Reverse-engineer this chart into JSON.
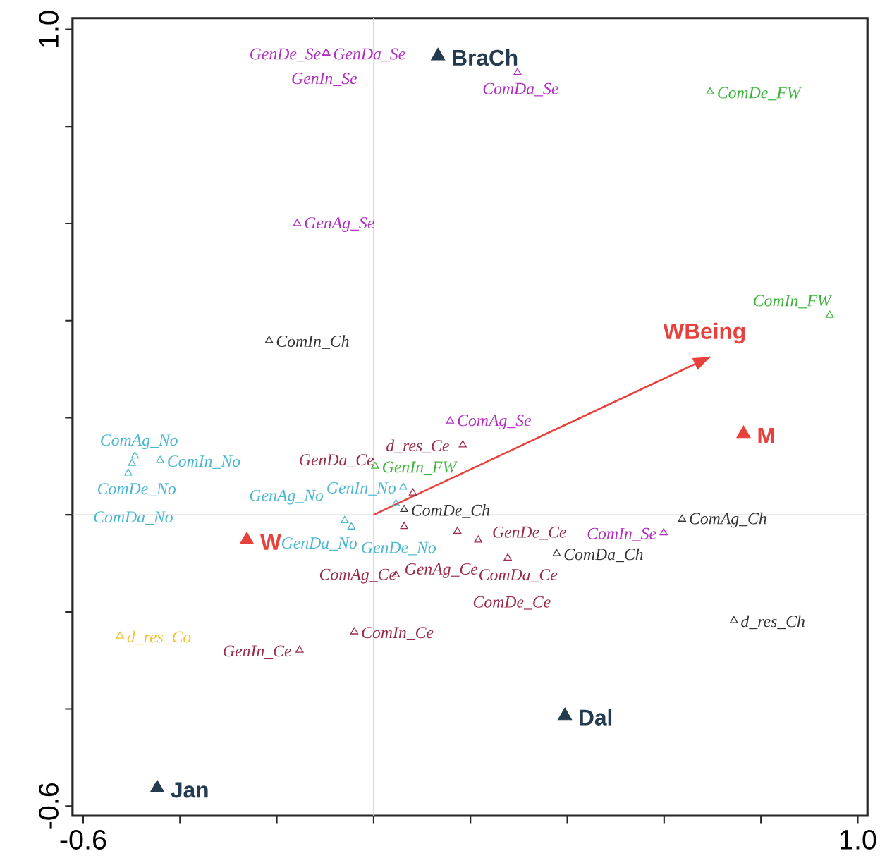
{
  "chart_data": {
    "type": "scatter",
    "marker": "triangle",
    "grid": false,
    "xlim": [
      -0.622,
      1.02
    ],
    "ylim": [
      -0.62,
      1.023
    ],
    "xticks": [
      {
        "value": -0.6,
        "label": "-0.6"
      },
      {
        "value": -0.4,
        "label": null
      },
      {
        "value": -0.2,
        "label": null
      },
      {
        "value": 0,
        "label": null
      },
      {
        "value": 0.2,
        "label": null
      },
      {
        "value": 0.4,
        "label": null
      },
      {
        "value": 0.6,
        "label": null
      },
      {
        "value": 0.8,
        "label": null
      },
      {
        "value": 1.0,
        "label": "1.0"
      }
    ],
    "yticks": [
      {
        "value": -0.6,
        "label": "-0.6"
      },
      {
        "value": -0.4,
        "label": null
      },
      {
        "value": -0.2,
        "label": null
      },
      {
        "value": 0,
        "label": null
      },
      {
        "value": 0.2,
        "label": null
      },
      {
        "value": 0.4,
        "label": null
      },
      {
        "value": 0.6,
        "label": null
      },
      {
        "value": 0.8,
        "label": null
      },
      {
        "value": 1.0,
        "label": "1.0"
      }
    ],
    "ref_lines": [
      {
        "axis": "x",
        "value": 0,
        "color": "#d6d6d6"
      },
      {
        "axis": "y",
        "value": 0,
        "color": "#e3e3e3"
      }
    ],
    "series": [
      {
        "color": "#b22fc4",
        "x": [
          -0.098,
          -0.098,
          -0.098,
          -0.158,
          0.297,
          0.158,
          0.599
        ],
        "values": [
          0.951,
          0.951,
          0.951,
          0.6,
          0.911,
          0.193,
          -0.037
        ]
      },
      {
        "color": "#3cb43c",
        "x": [
          0.695,
          0.942,
          0.003
        ],
        "values": [
          0.871,
          0.411,
          0.1
        ]
      },
      {
        "color": "#333333",
        "x": [
          -0.216,
          0.063,
          0.637,
          0.378,
          0.744
        ],
        "values": [
          0.359,
          0.011,
          -0.009,
          -0.08,
          -0.218
        ]
      },
      {
        "color": "#4bb8d0",
        "x": [
          -0.493,
          -0.441,
          -0.499,
          -0.507,
          0.061,
          0.046,
          -0.06,
          -0.046
        ],
        "values": [
          0.121,
          0.112,
          0.106,
          0.086,
          0.057,
          0.023,
          -0.012,
          -0.025
        ]
      },
      {
        "color": "#9b2d4b",
        "x": [
          0.184,
          0.081,
          0.173,
          0.063,
          0.216,
          0.277,
          0.046,
          -0.04,
          -0.153
        ],
        "values": [
          0.144,
          0.045,
          -0.034,
          -0.024,
          -0.052,
          -0.089,
          -0.124,
          -0.241,
          -0.279
        ]
      },
      {
        "color": "#f5c030",
        "x": [
          -0.524
        ],
        "values": [
          -0.25
        ]
      },
      {
        "color": "#243a4e",
        "marker": "triangle",
        "x": [
          0.133,
          -0.447,
          0.395
        ],
        "values": [
          0.945,
          -0.563,
          -0.414
        ]
      },
      {
        "color": "#e8413c",
        "marker": "triangle",
        "x": [
          -0.262,
          0.764
        ],
        "values": [
          -0.052,
          0.167
        ]
      },
      {
        "type": "line",
        "marker": "none",
        "color": "#e8413c",
        "x": [
          0,
          0.695
        ],
        "values": [
          0,
          0.325
        ]
      }
    ],
    "annotations": [
      {
        "text": "GenDa_Se",
        "x": -0.098,
        "y": 0.951
      },
      {
        "text": "GenDe_Se",
        "x": -0.098,
        "y": 0.951
      },
      {
        "text": "GenIn_Se",
        "x": -0.098,
        "y": 0.951
      },
      {
        "text": "GenAg_Se",
        "x": -0.158,
        "y": 0.6
      },
      {
        "text": "ComDa_Se",
        "x": 0.297,
        "y": 0.911
      },
      {
        "text": "ComAg_Se",
        "x": 0.158,
        "y": 0.193
      },
      {
        "text": "ComIn_Se",
        "x": 0.599,
        "y": -0.037
      },
      {
        "text": "ComDe_FW",
        "x": 0.695,
        "y": 0.871
      },
      {
        "text": "ComIn_FW",
        "x": 0.942,
        "y": 0.411
      },
      {
        "text": "GenIn_FW",
        "x": 0.003,
        "y": 0.1
      },
      {
        "text": "ComIn_Ch",
        "x": -0.216,
        "y": 0.359
      },
      {
        "text": "ComDe_Ch",
        "x": 0.063,
        "y": 0.011
      },
      {
        "text": "ComAg_Ch",
        "x": 0.637,
        "y": -0.009
      },
      {
        "text": "ComDa_Ch",
        "x": 0.378,
        "y": -0.08
      },
      {
        "text": "d_res_Ch",
        "x": 0.744,
        "y": -0.218
      },
      {
        "text": "ComAg_No",
        "x": -0.493,
        "y": 0.121
      },
      {
        "text": "ComIn_No",
        "x": -0.441,
        "y": 0.112
      },
      {
        "text": "ComDe_No",
        "x": -0.499,
        "y": 0.106
      },
      {
        "text": "ComDa_No",
        "x": -0.507,
        "y": 0.086
      },
      {
        "text": "GenIn_No",
        "x": 0.061,
        "y": 0.057
      },
      {
        "text": "GenDe_No",
        "x": 0.046,
        "y": 0.023
      },
      {
        "text": "GenAg_No",
        "x": -0.06,
        "y": -0.012
      },
      {
        "text": "GenDa_No",
        "x": -0.046,
        "y": -0.025
      },
      {
        "text": "d_res_Ce",
        "x": 0.184,
        "y": 0.144
      },
      {
        "text": "GenDa_Ce",
        "x": 0.081,
        "y": 0.045
      },
      {
        "text": "GenDe_Ce",
        "x": 0.173,
        "y": -0.034
      },
      {
        "text": "GenAg_Ce",
        "x": 0.063,
        "y": -0.024
      },
      {
        "text": "ComDa_Ce",
        "x": 0.216,
        "y": -0.052
      },
      {
        "text": "ComDe_Ce",
        "x": 0.277,
        "y": -0.089
      },
      {
        "text": "ComAg_Ce",
        "x": 0.046,
        "y": -0.124
      },
      {
        "text": "ComIn_Ce",
        "x": -0.04,
        "y": -0.241
      },
      {
        "text": "GenIn_Ce",
        "x": -0.153,
        "y": -0.279
      },
      {
        "text": "d_res_Co",
        "x": -0.524,
        "y": -0.25
      },
      {
        "text": "BraCh",
        "x": 0.133,
        "y": 0.945
      },
      {
        "text": "Jan",
        "x": -0.447,
        "y": -0.563
      },
      {
        "text": "Dal",
        "x": 0.395,
        "y": -0.414
      },
      {
        "text": "W",
        "x": -0.262,
        "y": -0.052
      },
      {
        "text": "M",
        "x": 0.764,
        "y": 0.167
      },
      {
        "text": "WBeing",
        "x": 0.695,
        "y": 0.325
      }
    ]
  }
}
